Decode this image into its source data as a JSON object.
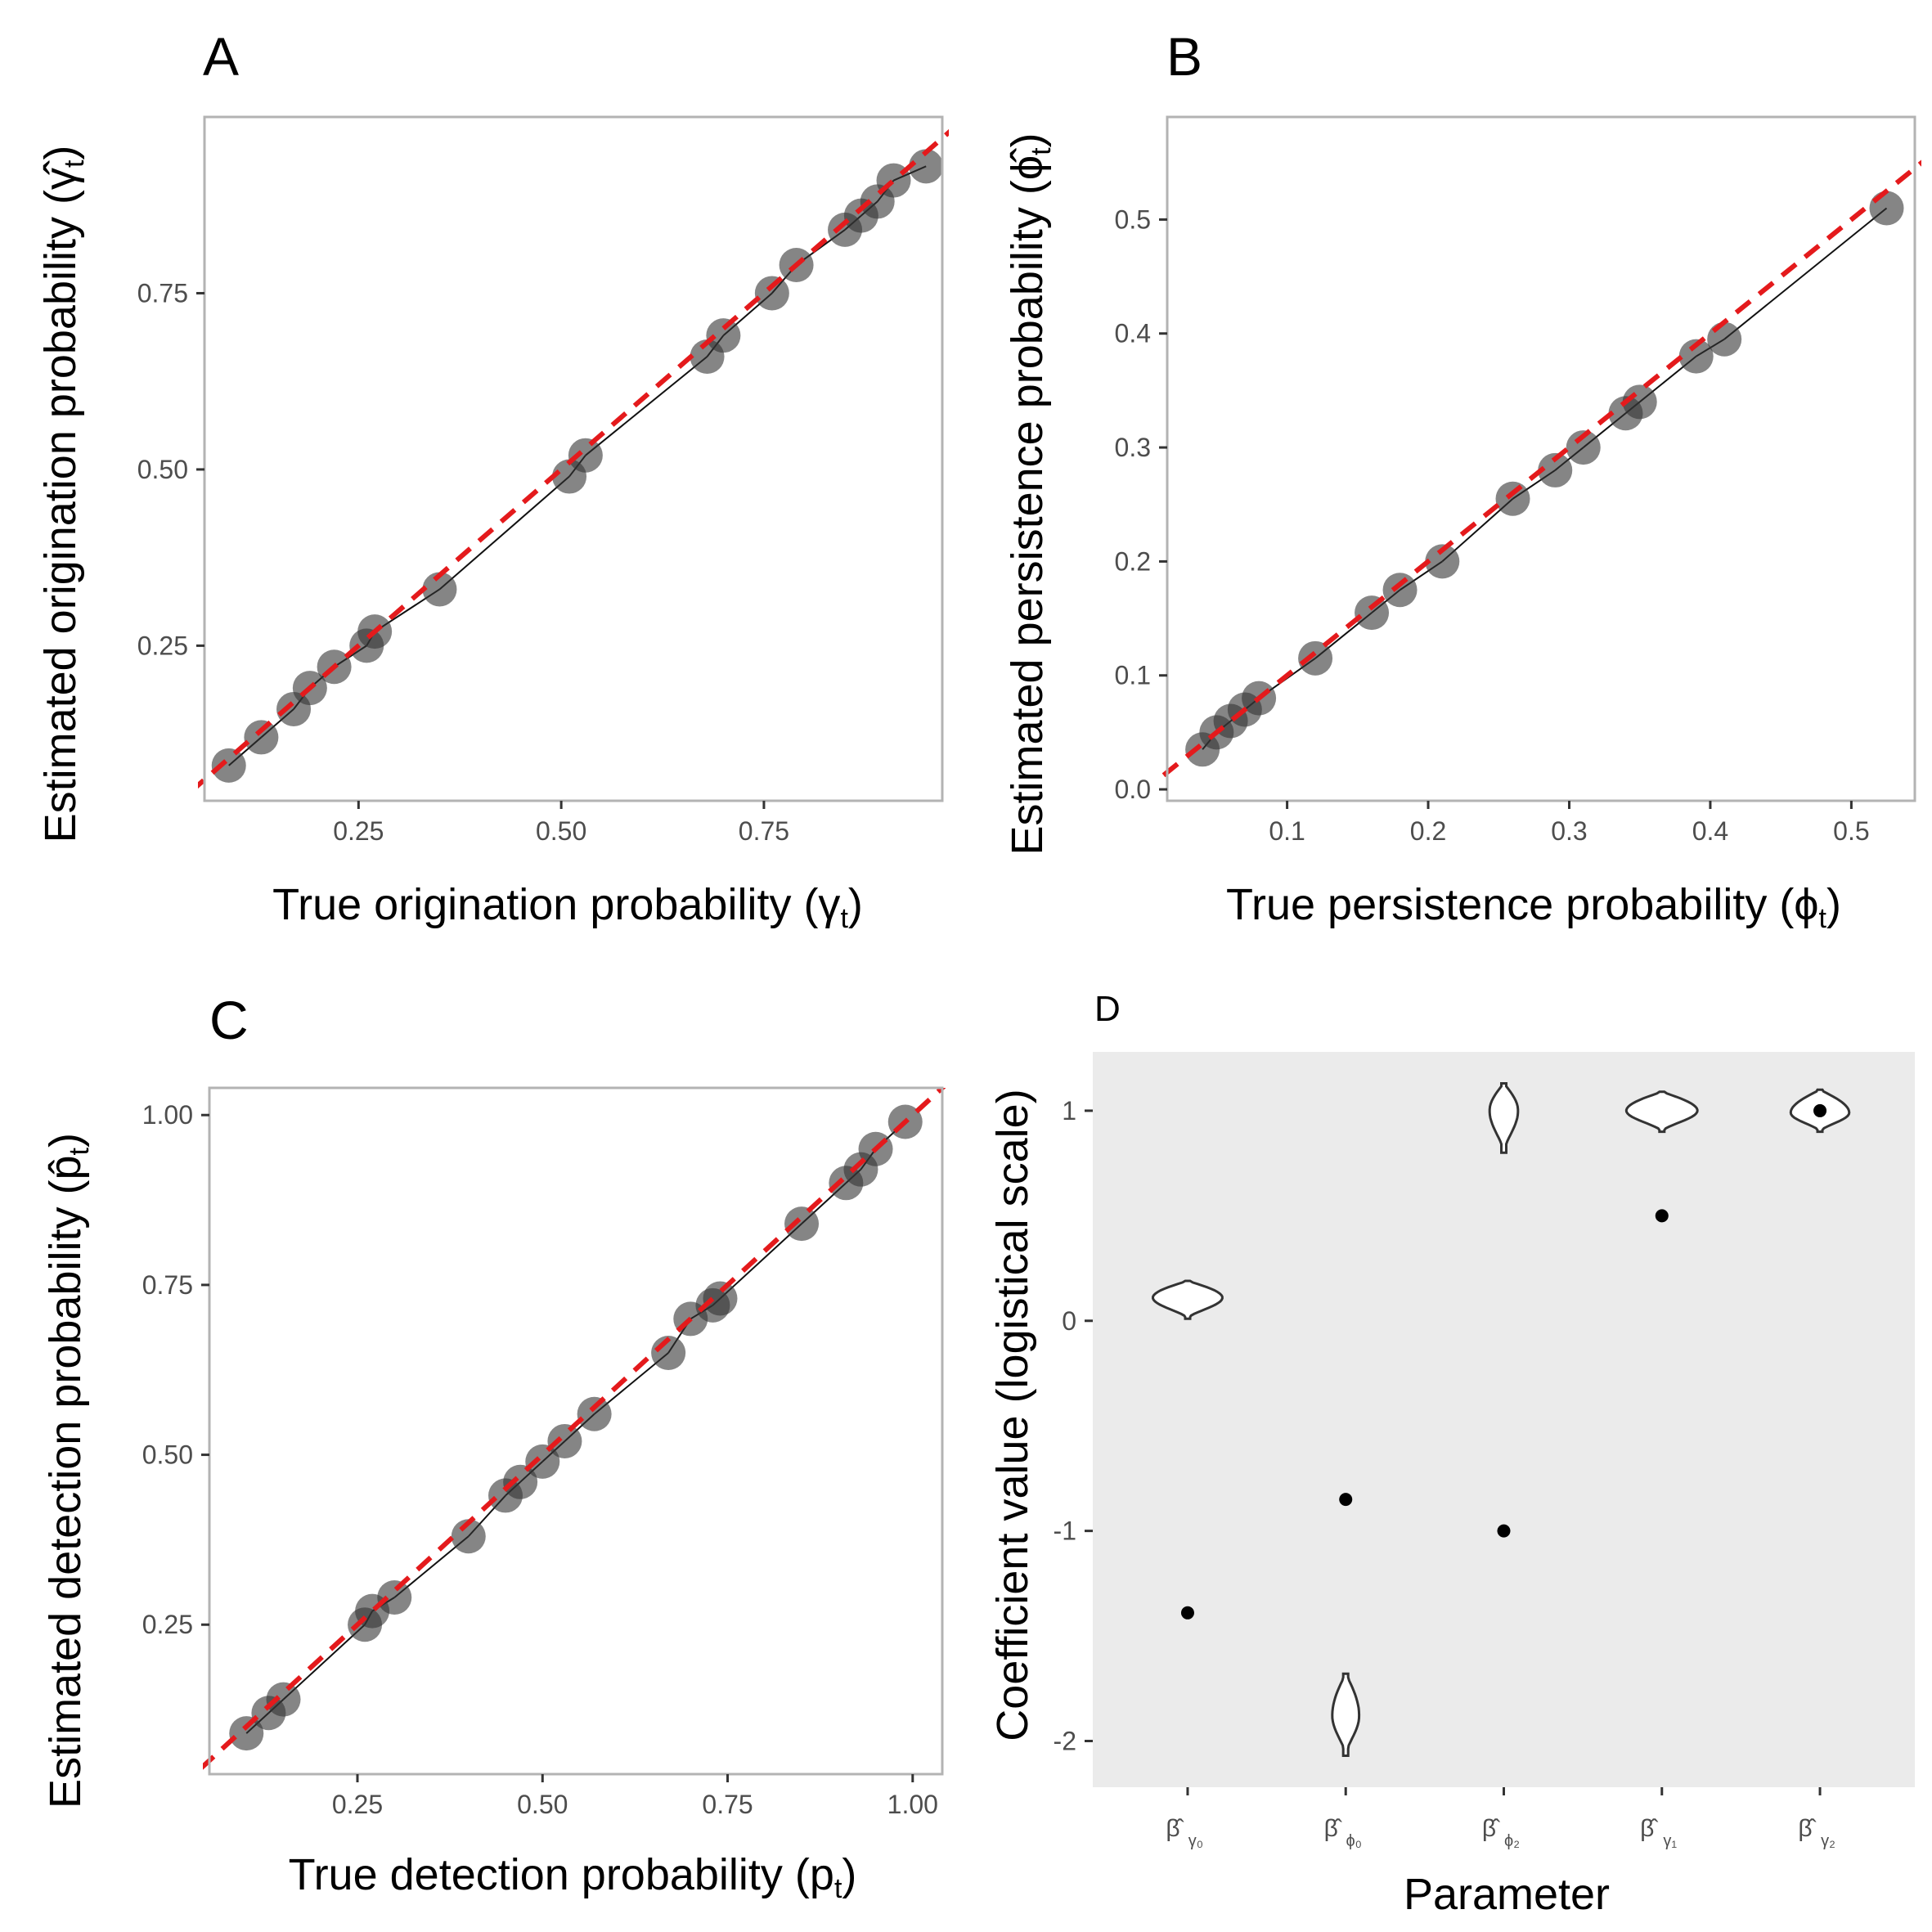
{
  "chart_data": [
    {
      "panel": "A",
      "type": "scatter",
      "xlabel": "True origination probability (γ",
      "xlabel_sub": "t",
      "ylabel": "Estimated origination probability (γ̂",
      "ylabel_sub": "t",
      "xlim": [
        0.06,
        0.97
      ],
      "ylim": [
        0.03,
        1.0
      ],
      "xticks": [
        0.25,
        0.5,
        0.75
      ],
      "xtick_labels": [
        "0.25",
        "0.50",
        "0.75"
      ],
      "yticks": [
        0.25,
        0.5,
        0.75
      ],
      "ytick_labels": [
        "0.25",
        "0.50",
        "0.75"
      ],
      "grid": false,
      "reference_line": {
        "slope": 1,
        "intercept": 0,
        "color": "#e41a1c",
        "style": "dashed"
      },
      "point_color": "#333333",
      "series": [
        {
          "x": [
            0.09,
            0.13,
            0.17,
            0.19,
            0.22,
            0.26,
            0.27,
            0.35,
            0.51,
            0.53,
            0.68,
            0.7,
            0.76,
            0.79,
            0.85,
            0.87,
            0.89,
            0.91,
            0.95
          ],
          "y": [
            0.08,
            0.12,
            0.16,
            0.19,
            0.22,
            0.25,
            0.27,
            0.33,
            0.49,
            0.52,
            0.66,
            0.69,
            0.75,
            0.79,
            0.84,
            0.86,
            0.88,
            0.91,
            0.93
          ]
        }
      ]
    },
    {
      "panel": "B",
      "type": "scatter",
      "xlabel": "True persistence probability (ϕ",
      "xlabel_sub": "t",
      "ylabel": "Estimated persistence probability (ϕ̂",
      "ylabel_sub": "t",
      "xlim": [
        0.015,
        0.545
      ],
      "ylim": [
        -0.01,
        0.59
      ],
      "xticks": [
        0.1,
        0.2,
        0.3,
        0.4,
        0.5
      ],
      "xtick_labels": [
        "0.1",
        "0.2",
        "0.3",
        "0.4",
        "0.5"
      ],
      "yticks": [
        0.0,
        0.1,
        0.2,
        0.3,
        0.4,
        0.5
      ],
      "ytick_labels": [
        "0.0",
        "0.1",
        "0.2",
        "0.3",
        "0.4",
        "0.5"
      ],
      "grid": false,
      "reference_line": {
        "slope": 1,
        "intercept": 0,
        "color": "#e41a1c",
        "style": "dashed"
      },
      "point_color": "#333333",
      "series": [
        {
          "x": [
            0.04,
            0.05,
            0.06,
            0.07,
            0.08,
            0.12,
            0.16,
            0.18,
            0.21,
            0.26,
            0.29,
            0.31,
            0.34,
            0.35,
            0.39,
            0.41,
            0.525
          ],
          "y": [
            0.035,
            0.05,
            0.06,
            0.07,
            0.08,
            0.115,
            0.155,
            0.175,
            0.2,
            0.255,
            0.28,
            0.3,
            0.33,
            0.34,
            0.38,
            0.395,
            0.51
          ]
        }
      ]
    },
    {
      "panel": "C",
      "type": "scatter",
      "xlabel": "True detection probability (p",
      "xlabel_sub": "t",
      "ylabel": "Estimated detection probability (p̂",
      "ylabel_sub": "t",
      "xlim": [
        0.05,
        1.04
      ],
      "ylim": [
        0.03,
        1.04
      ],
      "xticks": [
        0.25,
        0.5,
        0.75,
        1.0
      ],
      "xtick_labels": [
        "0.25",
        "0.50",
        "0.75",
        "1.00"
      ],
      "yticks": [
        0.25,
        0.5,
        0.75,
        1.0
      ],
      "ytick_labels": [
        "0.25",
        "0.50",
        "0.75",
        "1.00"
      ],
      "grid": false,
      "reference_line": {
        "slope": 1,
        "intercept": 0,
        "color": "#e41a1c",
        "style": "dashed"
      },
      "point_color": "#333333",
      "series": [
        {
          "x": [
            0.1,
            0.13,
            0.15,
            0.26,
            0.27,
            0.3,
            0.4,
            0.45,
            0.47,
            0.5,
            0.53,
            0.57,
            0.67,
            0.7,
            0.73,
            0.74,
            0.85,
            0.91,
            0.93,
            0.95,
            0.99
          ],
          "y": [
            0.09,
            0.12,
            0.14,
            0.25,
            0.27,
            0.29,
            0.38,
            0.44,
            0.46,
            0.49,
            0.52,
            0.56,
            0.65,
            0.7,
            0.72,
            0.73,
            0.84,
            0.9,
            0.92,
            0.95,
            0.99
          ]
        }
      ]
    },
    {
      "panel": "D",
      "type": "violin",
      "xlabel": "Parameter",
      "ylabel": "Coefficient value (logistical scale)",
      "ylim": [
        -2.22,
        1.28
      ],
      "yticks": [
        -2,
        -1,
        0,
        1
      ],
      "ytick_labels": [
        "-2",
        "-1",
        "0",
        "1"
      ],
      "background": "#ebebeb",
      "categories": [
        {
          "symbol": "β̂",
          "sub": "γ₀"
        },
        {
          "symbol": "β̂",
          "sub": "ϕ₀"
        },
        {
          "symbol": "β̂",
          "sub": "ϕ₂"
        },
        {
          "symbol": "β̂",
          "sub": "γ₁"
        },
        {
          "symbol": "β̂",
          "sub": "γ₂"
        }
      ],
      "true_values": [
        -1.39,
        -0.85,
        -1.0,
        0.5,
        1.0
      ],
      "violins": [
        {
          "ymin": 0.01,
          "ymax": 0.19,
          "mode": 0.11,
          "half_width": 0.44
        },
        {
          "ymin": -2.07,
          "ymax": -1.68,
          "mode": -1.88,
          "half_width": 0.17
        },
        {
          "ymin": 0.8,
          "ymax": 1.13,
          "mode": 1.0,
          "half_width": 0.18
        },
        {
          "ymin": 0.9,
          "ymax": 1.09,
          "mode": 1.0,
          "half_width": 0.45
        },
        {
          "ymin": 0.9,
          "ymax": 1.1,
          "mode": 0.99,
          "half_width": 0.37
        }
      ]
    }
  ]
}
